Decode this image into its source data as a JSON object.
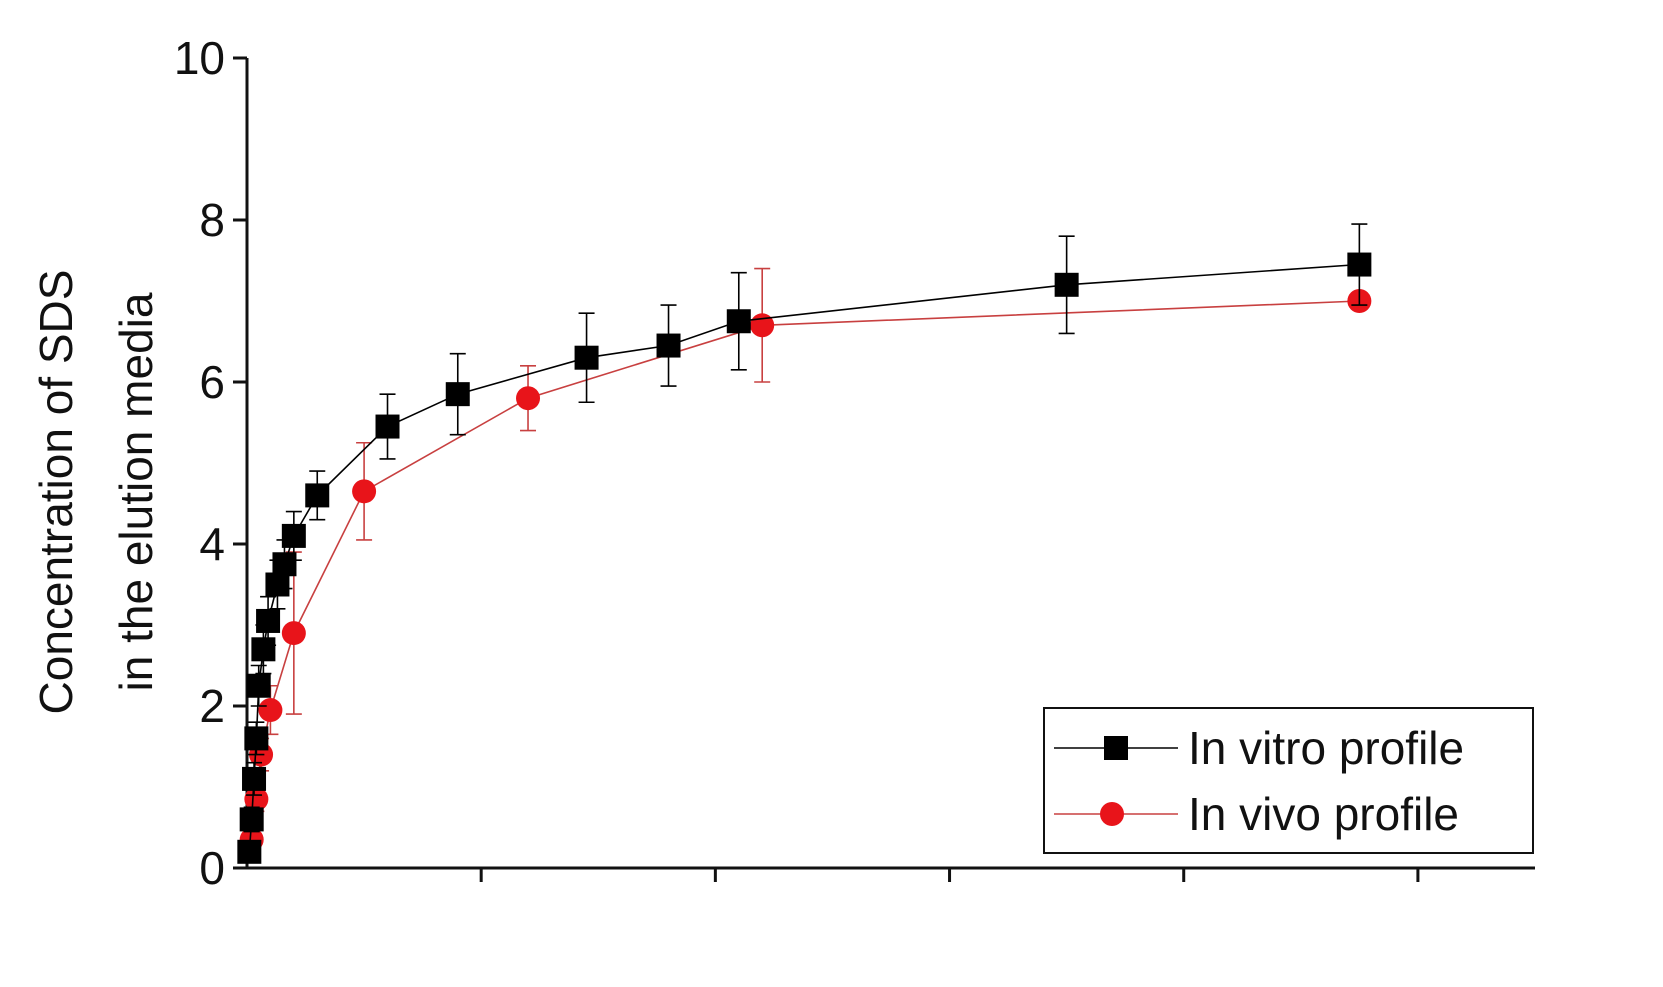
{
  "chart_data": {
    "type": "scatter",
    "title": "",
    "xlabel": "",
    "ylabel_lines": [
      "Concentration of SDS",
      "in the elution media"
    ],
    "xlim": [
      0,
      55
    ],
    "ylim": [
      0,
      10
    ],
    "y_ticks": [
      0,
      2,
      4,
      6,
      8,
      10
    ],
    "y_tick_labels": [
      "0",
      "2",
      "4",
      "6",
      "8",
      "10"
    ],
    "x_ticks": [
      0,
      10,
      20,
      30,
      40,
      50
    ],
    "grid": false,
    "legend_position": "bottom-right",
    "series": [
      {
        "name": "In vitro profile",
        "color": "#000000",
        "line_color": "#000000",
        "marker": "square",
        "x": [
          0.1,
          0.2,
          0.3,
          0.4,
          0.5,
          0.7,
          0.9,
          1.3,
          1.6,
          2.0,
          3.0,
          6.0,
          9.0,
          14.5,
          18.0,
          21.0,
          35.0,
          47.5
        ],
        "y": [
          0.2,
          0.6,
          1.1,
          1.6,
          2.25,
          2.7,
          3.05,
          3.5,
          3.75,
          4.1,
          4.6,
          5.45,
          5.85,
          6.3,
          6.45,
          6.75,
          7.2,
          7.45
        ],
        "err": [
          0.1,
          0.15,
          0.2,
          0.2,
          0.25,
          0.3,
          0.3,
          0.3,
          0.3,
          0.3,
          0.3,
          0.4,
          0.5,
          0.55,
          0.5,
          0.6,
          0.6,
          0.5
        ]
      },
      {
        "name": "In vivo profile",
        "color": "#e8141a",
        "line_color": "#c84040",
        "marker": "circle",
        "x": [
          0.2,
          0.4,
          0.6,
          1.0,
          2.0,
          5.0,
          12.0,
          22.0,
          47.5
        ],
        "y": [
          0.35,
          0.85,
          1.4,
          1.95,
          2.9,
          4.65,
          5.8,
          6.7,
          7.0
        ],
        "err": [
          0.1,
          0.15,
          0.2,
          0.3,
          1.0,
          0.6,
          0.4,
          0.7,
          0.1
        ]
      }
    ]
  }
}
